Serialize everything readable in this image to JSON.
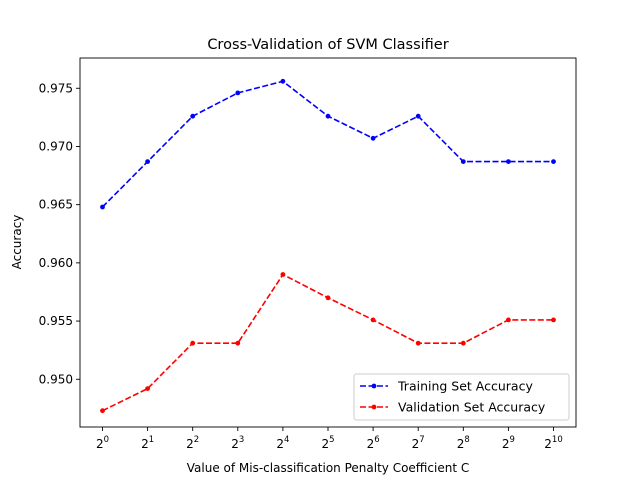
{
  "chart_data": {
    "type": "line",
    "title": "Cross-Validation of SVM Classifier",
    "xlabel": "Value of Mis-classification Penalty Coefficient C",
    "ylabel": "Accuracy",
    "x_ticks": [
      {
        "base": "2",
        "exp": "0"
      },
      {
        "base": "2",
        "exp": "1"
      },
      {
        "base": "2",
        "exp": "2"
      },
      {
        "base": "2",
        "exp": "3"
      },
      {
        "base": "2",
        "exp": "4"
      },
      {
        "base": "2",
        "exp": "5"
      },
      {
        "base": "2",
        "exp": "6"
      },
      {
        "base": "2",
        "exp": "7"
      },
      {
        "base": "2",
        "exp": "8"
      },
      {
        "base": "2",
        "exp": "9"
      },
      {
        "base": "2",
        "exp": "10"
      }
    ],
    "x": [
      1,
      2,
      4,
      8,
      16,
      32,
      64,
      128,
      256,
      512,
      1024
    ],
    "x_scale": "log2",
    "y_ticks": [
      "0.950",
      "0.955",
      "0.960",
      "0.965",
      "0.970",
      "0.975"
    ],
    "y_tick_values": [
      0.95,
      0.955,
      0.96,
      0.965,
      0.97,
      0.975
    ],
    "ylim": [
      0.9459,
      0.9776
    ],
    "grid": false,
    "legend_position": "lower-right",
    "series": [
      {
        "name": "Training Set Accuracy",
        "color": "#0000ff",
        "linestyle": "dashed",
        "marker": "point",
        "values": [
          0.9648,
          0.9687,
          0.9726,
          0.9746,
          0.9756,
          0.9726,
          0.9707,
          0.9726,
          0.9687,
          0.9687,
          0.9687
        ]
      },
      {
        "name": "Validation Set Accuracy",
        "color": "#ff0000",
        "linestyle": "dashed",
        "marker": "point",
        "values": [
          0.9473,
          0.9492,
          0.9531,
          0.9531,
          0.959,
          0.957,
          0.9551,
          0.9531,
          0.9531,
          0.9551,
          0.9551
        ]
      }
    ]
  }
}
